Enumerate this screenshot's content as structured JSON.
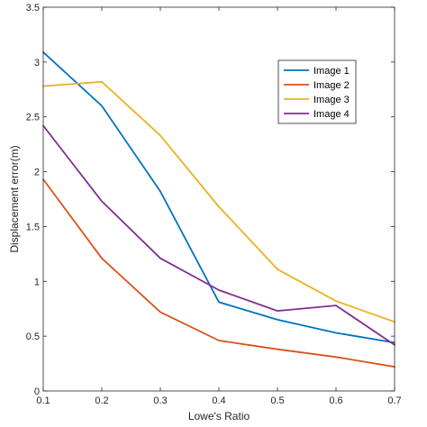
{
  "chart_data": {
    "type": "line",
    "title": "",
    "xlabel": "Lowe's Ratio",
    "ylabel": "Displacement error(m)",
    "xlim": [
      0.1,
      0.7
    ],
    "ylim": [
      0,
      3.5
    ],
    "x": [
      0.1,
      0.2,
      0.3,
      0.4,
      0.5,
      0.6,
      0.7
    ],
    "x_ticks": [
      "0.1",
      "0.2",
      "0.3",
      "0.4",
      "0.5",
      "0.6",
      "0.7"
    ],
    "y_ticks_values": [
      0,
      0.5,
      1,
      1.5,
      2,
      2.5,
      3,
      3.5
    ],
    "y_ticks": [
      "0",
      "0.5",
      "1",
      "1.5",
      "2",
      "2.5",
      "3",
      "3.5"
    ],
    "grid": false,
    "box": true,
    "legend_position": "top-right",
    "series": [
      {
        "name": "Image 1",
        "color": "#0072BD",
        "values": [
          3.09,
          2.6,
          1.82,
          0.81,
          0.65,
          0.53,
          0.44
        ]
      },
      {
        "name": "Image 2",
        "color": "#D95319",
        "values": [
          1.93,
          1.21,
          0.72,
          0.46,
          0.38,
          0.31,
          0.22
        ]
      },
      {
        "name": "Image 3",
        "color": "#EDB120",
        "values": [
          2.78,
          2.82,
          2.33,
          1.68,
          1.11,
          0.82,
          0.63
        ]
      },
      {
        "name": "Image 4",
        "color": "#7E2F8E",
        "values": [
          2.42,
          1.73,
          1.21,
          0.92,
          0.73,
          0.78,
          0.42
        ]
      }
    ]
  }
}
